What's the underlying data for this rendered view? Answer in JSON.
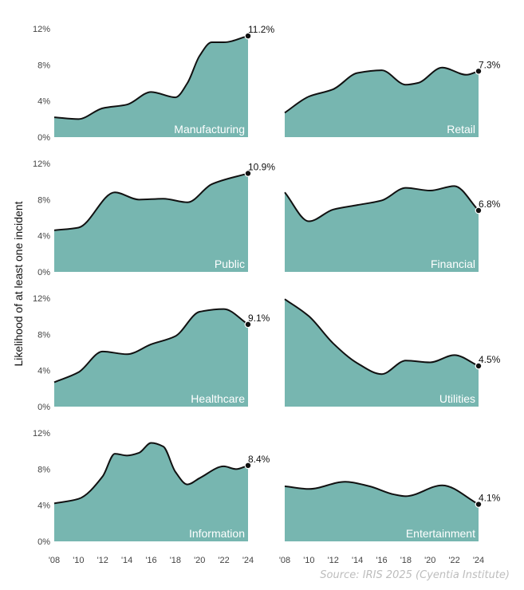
{
  "chart_data": {
    "type": "area",
    "layout": "small-multiples 4x2",
    "ylabel": "Likelihood of at least one incident",
    "ylim": [
      0,
      12
    ],
    "yticks": [
      "0%",
      "4%",
      "8%",
      "12%"
    ],
    "xlim": [
      2008,
      2024
    ],
    "xticks": [
      "'08",
      "'10",
      "'12",
      "'14",
      "'16",
      "'18",
      "'20",
      "'22",
      "'24"
    ],
    "source": "Source: IRIS 2025 (Cyentia Institute)",
    "fill_color": "#77b6b0",
    "line_color": "#111111",
    "panels": [
      {
        "name": "Manufacturing",
        "end_label": "11.2%",
        "x": [
          2008,
          2010,
          2012,
          2014,
          2016,
          2018,
          2019,
          2020,
          2021,
          2022,
          2024
        ],
        "y": [
          2.2,
          2.0,
          3.2,
          3.6,
          5.0,
          4.4,
          6.0,
          9.0,
          10.5,
          10.5,
          11.2
        ]
      },
      {
        "name": "Retail",
        "end_label": "7.3%",
        "x": [
          2008,
          2010,
          2012,
          2014,
          2016,
          2018,
          2019,
          2021,
          2023,
          2024
        ],
        "y": [
          2.7,
          4.5,
          5.3,
          7.1,
          7.4,
          5.8,
          6.0,
          7.7,
          6.9,
          7.3
        ]
      },
      {
        "name": "Public",
        "end_label": "10.9%",
        "x": [
          2008,
          2010,
          2013,
          2015,
          2017,
          2019,
          2021,
          2024
        ],
        "y": [
          4.6,
          4.9,
          8.8,
          8.0,
          8.1,
          7.7,
          9.7,
          10.9
        ]
      },
      {
        "name": "Financial",
        "end_label": "6.8%",
        "x": [
          2008,
          2010,
          2012,
          2014,
          2016,
          2018,
          2020,
          2022,
          2024
        ],
        "y": [
          8.8,
          5.6,
          6.9,
          7.4,
          7.9,
          9.3,
          9.0,
          9.5,
          6.8
        ]
      },
      {
        "name": "Healthcare",
        "end_label": "9.1%",
        "x": [
          2008,
          2010,
          2012,
          2014,
          2016,
          2018,
          2020,
          2022,
          2024
        ],
        "y": [
          2.7,
          3.8,
          6.1,
          5.8,
          6.9,
          7.8,
          10.5,
          10.8,
          9.1
        ]
      },
      {
        "name": "Utilities",
        "end_label": "4.5%",
        "x": [
          2008,
          2010,
          2012,
          2014,
          2016,
          2018,
          2020,
          2022,
          2024
        ],
        "y": [
          11.9,
          10.0,
          7.0,
          4.8,
          3.6,
          5.1,
          4.9,
          5.7,
          4.5
        ]
      },
      {
        "name": "Information",
        "end_label": "8.4%",
        "x": [
          2008,
          2010,
          2012,
          2013,
          2014,
          2015,
          2016,
          2017,
          2018,
          2019,
          2020,
          2022,
          2023,
          2024
        ],
        "y": [
          4.2,
          4.7,
          7.2,
          9.7,
          9.5,
          9.8,
          10.9,
          10.5,
          7.7,
          6.3,
          7.0,
          8.3,
          8.0,
          8.4
        ]
      },
      {
        "name": "Entertainment",
        "end_label": "4.1%",
        "x": [
          2008,
          2010,
          2013,
          2015,
          2017,
          2018,
          2021,
          2024
        ],
        "y": [
          6.1,
          5.8,
          6.6,
          6.1,
          5.2,
          5.0,
          6.2,
          4.1
        ]
      }
    ]
  }
}
